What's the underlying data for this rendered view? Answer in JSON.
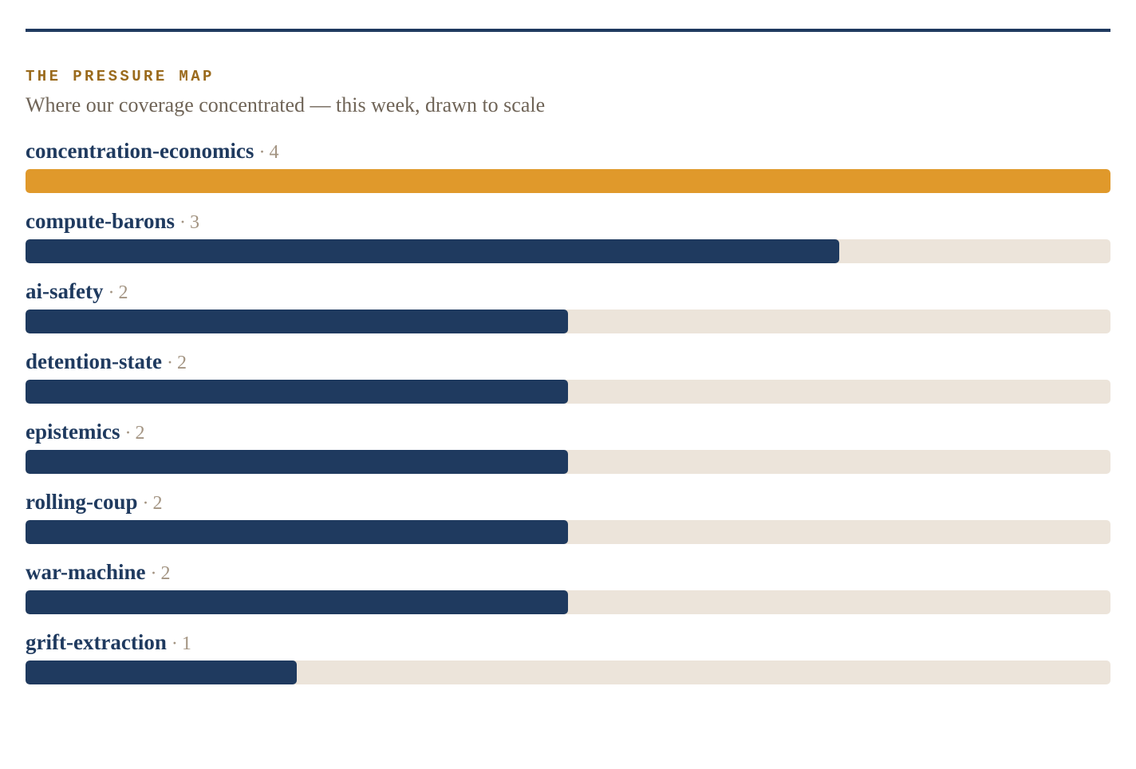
{
  "header": {
    "kicker": "THE PRESSURE MAP",
    "subtitle": "Where our coverage concentrated — this week, drawn to scale"
  },
  "colors": {
    "rule": "#1f3a5f",
    "kicker": "#9a6a1c",
    "bar_default": "#1f3a5f",
    "bar_top": "#e0992b",
    "track": "#ece4da"
  },
  "chart_data": {
    "type": "bar",
    "orientation": "horizontal",
    "title": "THE PRESSURE MAP",
    "subtitle": "Where our coverage concentrated — this week, drawn to scale",
    "xlim": [
      0,
      4
    ],
    "categories": [
      "concentration-economics",
      "compute-barons",
      "ai-safety",
      "detention-state",
      "epistemics",
      "rolling-coup",
      "war-machine",
      "grift-extraction"
    ],
    "values": [
      4,
      3,
      2,
      2,
      2,
      2,
      2,
      1
    ],
    "highlight_index": 0
  }
}
